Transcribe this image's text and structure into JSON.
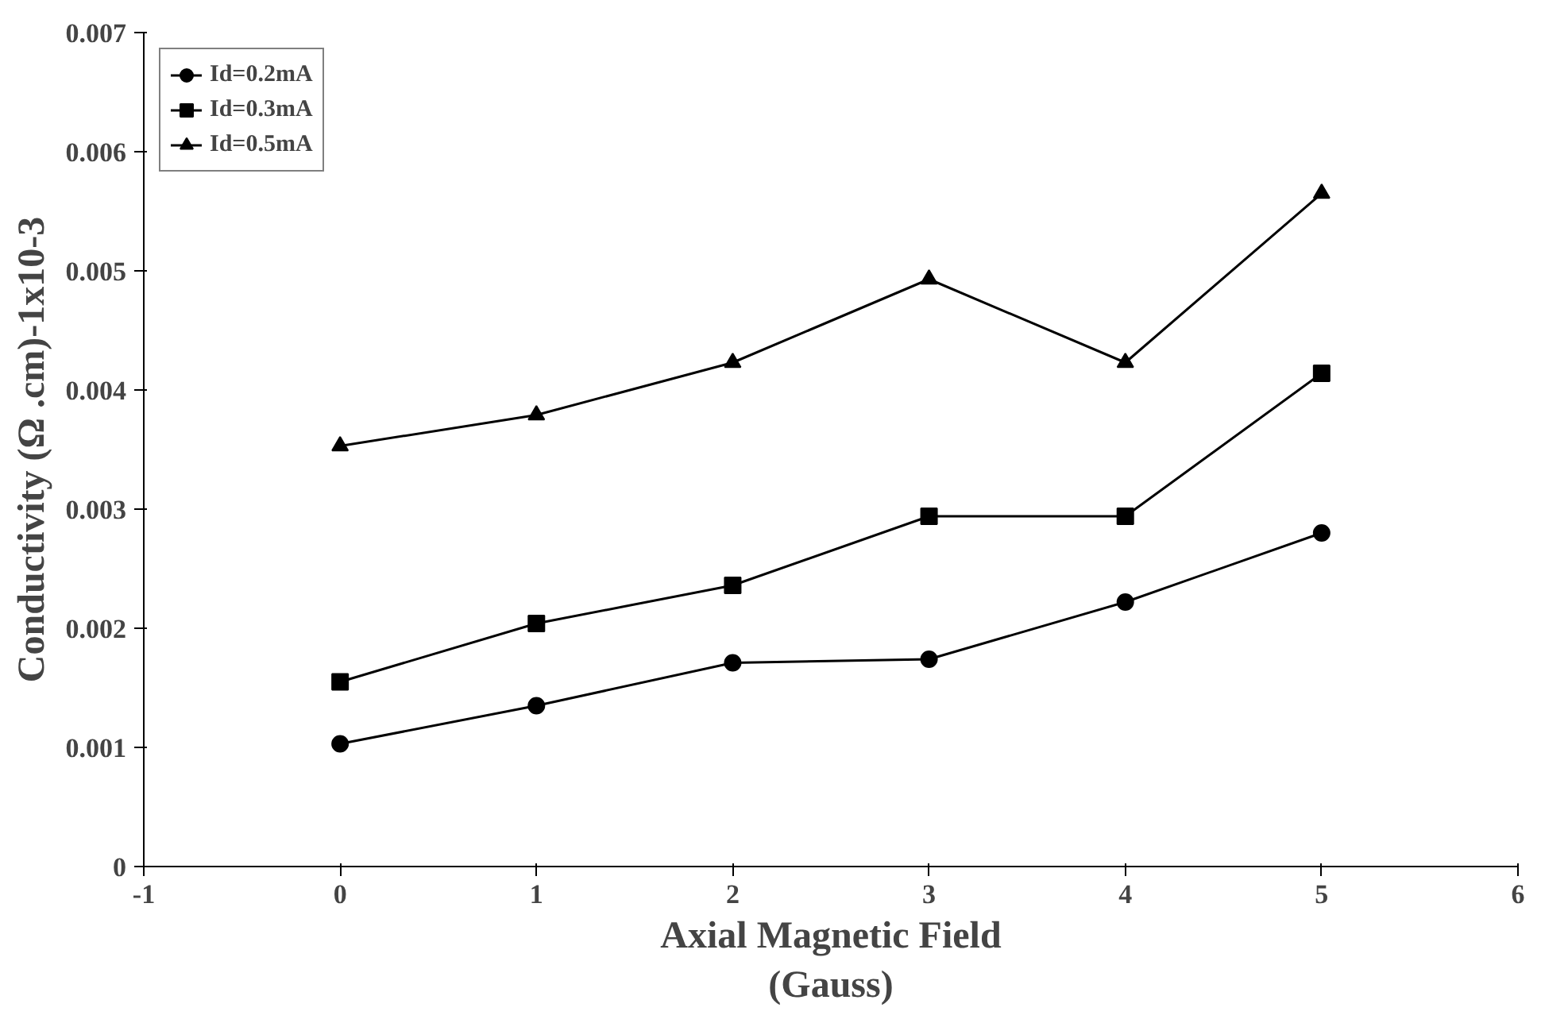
{
  "chart_data": {
    "type": "line",
    "xlabel": "Axial Magnetic Field\n(Gauss)",
    "ylabel": "Conductivity (Ω .cm)-1x10-3",
    "x": [
      0,
      1,
      2,
      3,
      4,
      5
    ],
    "xlim": [
      -1,
      6
    ],
    "xticks": [
      -1,
      0,
      1,
      2,
      3,
      4,
      5,
      6
    ],
    "ylim": [
      0,
      0.007
    ],
    "yticks": [
      0,
      0.001,
      0.002,
      0.003,
      0.004,
      0.005,
      0.006,
      0.007
    ],
    "grid": false,
    "legend": "top left",
    "series": [
      {
        "name": "Id=0.2mA",
        "color": "#000000",
        "marker": "circle",
        "values": [
          0.00103,
          0.00135,
          0.00171,
          0.00174,
          0.00222,
          0.0028
        ]
      },
      {
        "name": "Id=0.3mA",
        "color": "#000000",
        "marker": "square",
        "values": [
          0.00155,
          0.00204,
          0.00236,
          0.00294,
          0.00294,
          0.00414
        ]
      },
      {
        "name": "Id=0.5mA",
        "color": "#000000",
        "marker": "triangle",
        "values": [
          0.00353,
          0.00379,
          0.00423,
          0.00493,
          0.00423,
          0.00565
        ]
      }
    ]
  }
}
